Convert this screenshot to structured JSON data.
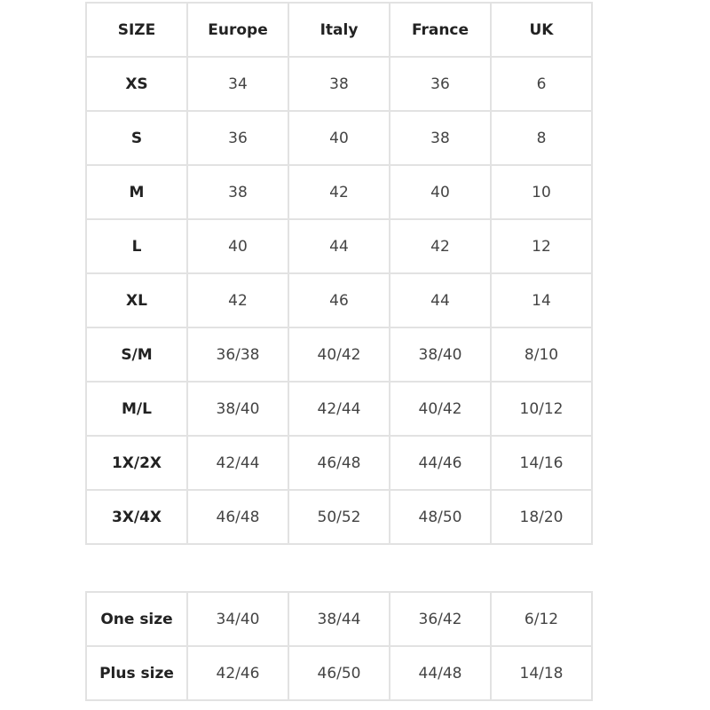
{
  "size_chart": {
    "headers": [
      "SIZE",
      "Europe",
      "Italy",
      "France",
      "UK"
    ],
    "rows": [
      [
        "XS",
        "34",
        "38",
        "36",
        "6"
      ],
      [
        "S",
        "36",
        "40",
        "38",
        "8"
      ],
      [
        "M",
        "38",
        "42",
        "40",
        "10"
      ],
      [
        "L",
        "40",
        "44",
        "42",
        "12"
      ],
      [
        "XL",
        "42",
        "46",
        "44",
        "14"
      ],
      [
        "S/M",
        "36/38",
        "40/42",
        "38/40",
        "8/10"
      ],
      [
        "M/L",
        "38/40",
        "42/44",
        "40/42",
        "10/12"
      ],
      [
        "1X/2X",
        "42/44",
        "46/48",
        "44/46",
        "14/16"
      ],
      [
        "3X/4X",
        "46/48",
        "50/52",
        "48/50",
        "18/20"
      ]
    ]
  },
  "special_sizes": {
    "rows": [
      [
        "One size",
        "34/40",
        "38/44",
        "36/42",
        "6/12"
      ],
      [
        "Plus size",
        "42/46",
        "46/50",
        "44/48",
        "14/18"
      ]
    ]
  },
  "colors": {
    "border": "#e2e2e2",
    "label_text": "#222222",
    "value_text": "#444444"
  }
}
